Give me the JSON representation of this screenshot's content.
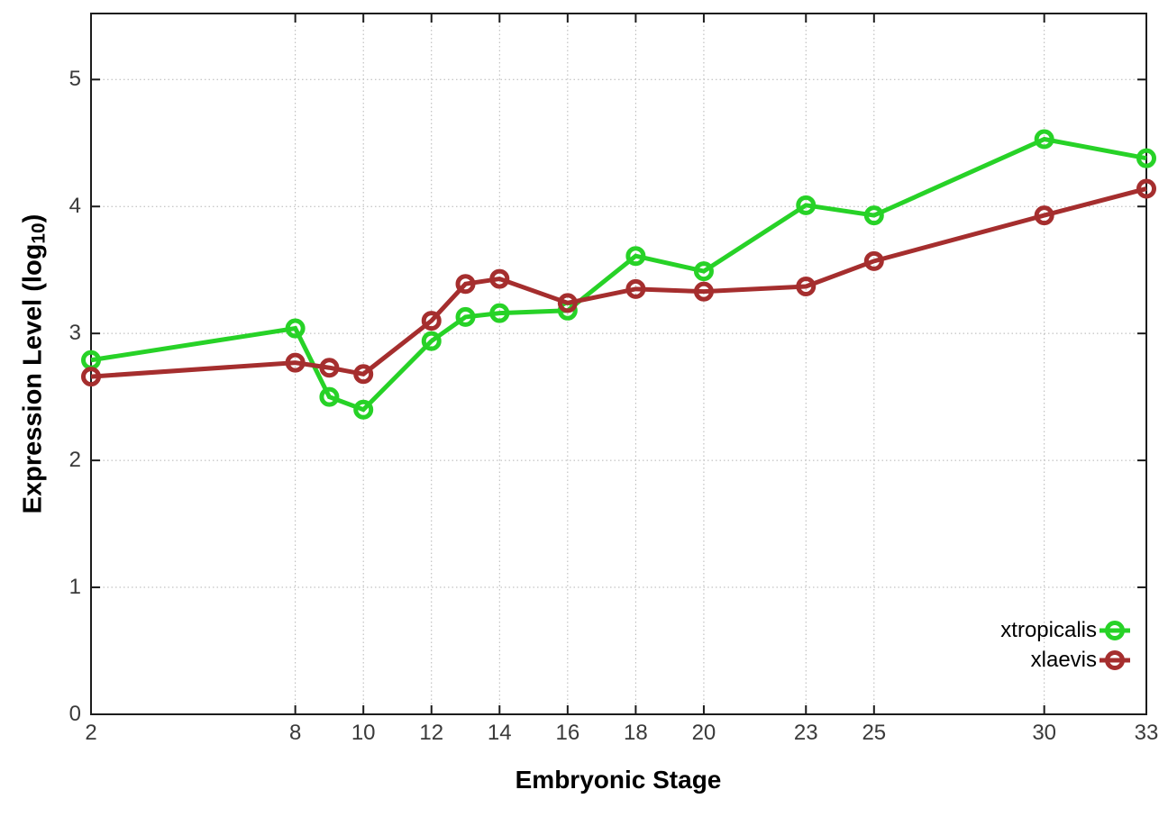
{
  "chart_data": {
    "type": "line",
    "title": "",
    "xlabel": "Embryonic Stage",
    "ylabel_prefix": "Expression Level (log",
    "ylabel_sub": "10",
    "ylabel_suffix": ")",
    "xlim": [
      2,
      33
    ],
    "ylim": [
      0,
      5.52
    ],
    "x_ticks": [
      2,
      8,
      10,
      12,
      14,
      16,
      18,
      20,
      23,
      25,
      30,
      33
    ],
    "y_ticks": [
      0,
      1,
      2,
      3,
      4,
      5
    ],
    "grid": "dotted",
    "legend_position": "inside-bottom-right",
    "marker": "open-circle",
    "x": [
      2,
      8,
      9,
      10,
      12,
      13,
      14,
      16,
      18,
      20,
      23,
      25,
      30,
      33
    ],
    "series": [
      {
        "name": "xtropicalis",
        "color": "#27d227",
        "values": [
          2.79,
          3.04,
          2.5,
          2.4,
          2.94,
          3.13,
          3.16,
          3.18,
          3.61,
          3.49,
          4.01,
          3.93,
          4.53,
          4.38
        ]
      },
      {
        "name": "xlaevis",
        "color": "#a52e2e",
        "values": [
          2.66,
          2.77,
          2.73,
          2.68,
          3.1,
          3.39,
          3.43,
          3.24,
          3.35,
          3.33,
          3.37,
          3.57,
          3.93,
          4.14
        ]
      }
    ],
    "style_colors": {
      "border": "#1c1c1c",
      "grid": "#b5b5b5",
      "tick_labels": "#3a3a3a",
      "axis_titles": "#000000",
      "background": "#ffffff"
    }
  }
}
